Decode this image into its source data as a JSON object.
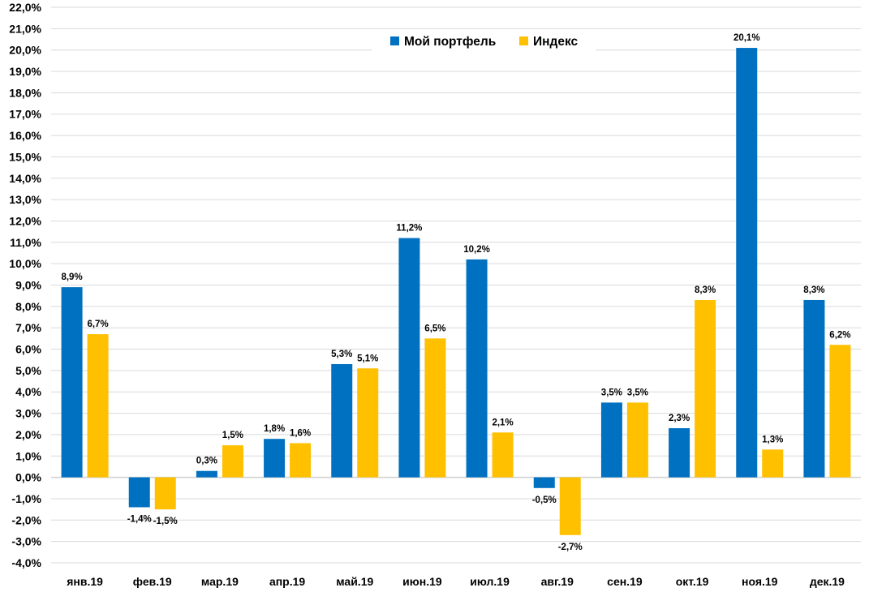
{
  "chart_data": {
    "type": "bar",
    "categories": [
      "янв.19",
      "фев.19",
      "мар.19",
      "апр.19",
      "май.19",
      "июн.19",
      "июл.19",
      "авг.19",
      "сен.19",
      "окт.19",
      "ноя.19",
      "дек.19"
    ],
    "series": [
      {
        "name": "Мой портфель",
        "color": "#0070c0",
        "values": [
          8.9,
          -1.4,
          0.3,
          1.8,
          5.3,
          11.2,
          10.2,
          -0.5,
          3.5,
          2.3,
          20.1,
          8.3
        ],
        "labels": [
          "8,9%",
          "-1,4%",
          "0,3%",
          "1,8%",
          "5,3%",
          "11,2%",
          "10,2%",
          "-0,5%",
          "3,5%",
          "2,3%",
          "20,1%",
          "8,3%"
        ]
      },
      {
        "name": "Индекс",
        "color": "#ffc000",
        "values": [
          6.7,
          -1.5,
          1.5,
          1.6,
          5.1,
          6.5,
          2.1,
          -2.7,
          3.5,
          8.3,
          1.3,
          6.2
        ],
        "labels": [
          "6,7%",
          "-1,5%",
          "1,5%",
          "1,6%",
          "5,1%",
          "6,5%",
          "2,1%",
          "-2,7%",
          "3,5%",
          "8,3%",
          "1,3%",
          "6,2%"
        ]
      }
    ],
    "yticks": [
      "22,0%",
      "21,0%",
      "20,0%",
      "19,0%",
      "18,0%",
      "17,0%",
      "16,0%",
      "15,0%",
      "14,0%",
      "13,0%",
      "12,0%",
      "11,0%",
      "10,0%",
      "9,0%",
      "8,0%",
      "7,0%",
      "6,0%",
      "5,0%",
      "4,0%",
      "3,0%",
      "2,0%",
      "1,0%",
      "0,0%",
      "-1,0%",
      "-2,0%",
      "-3,0%",
      "-4,0%"
    ],
    "ylim": [
      -4,
      22
    ],
    "grid": true,
    "legend_position": "top-center"
  }
}
